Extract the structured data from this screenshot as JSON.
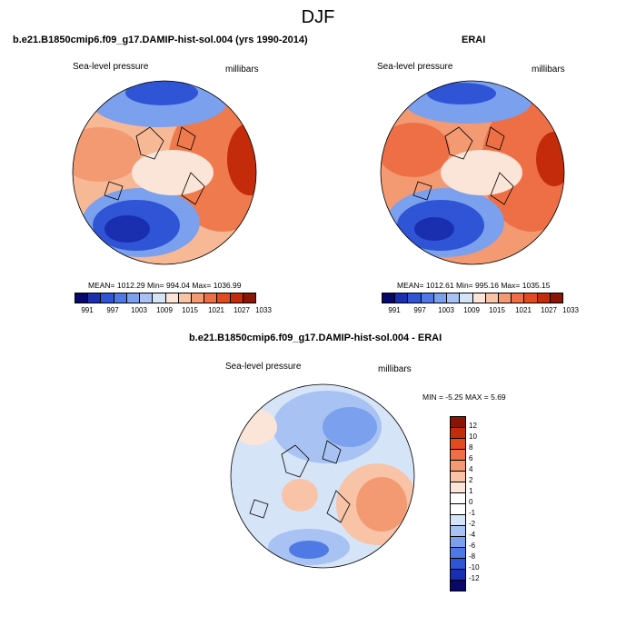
{
  "figure": {
    "title": "DJF",
    "panels": [
      {
        "title": "b.e21.B1850cmip6.f09_g17.DAMIP-hist-sol.004 (yrs 1990-2014)",
        "left_label": "Sea-level pressure",
        "right_label": "millibars",
        "stats": "MEAN= 1012.29  Min= 994.04  Max= 1036.99",
        "colorbar_ticks": [
          "991",
          "997",
          "1003",
          "1009",
          "1015",
          "1021",
          "1027",
          "1033"
        ]
      },
      {
        "title": "ERAI",
        "left_label": "Sea-level pressure",
        "right_label": "millibars",
        "stats": "MEAN= 1012.61  Min= 995.16  Max= 1035.15",
        "colorbar_ticks": [
          "991",
          "997",
          "1003",
          "1009",
          "1015",
          "1021",
          "1027",
          "1033"
        ]
      },
      {
        "title": "b.e21.B1850cmip6.f09_g17.DAMIP-hist-sol.004 - ERAI",
        "left_label": "Sea-level pressure",
        "right_label": "millibars",
        "stats": "MIN =  -5.25 MAX =    5.69",
        "colorbar_ticks": [
          "12",
          "10",
          "8",
          "6",
          "4",
          "2",
          "1",
          "0",
          "-1",
          "-2",
          "-4",
          "-6",
          "-8",
          "-10",
          "-12"
        ]
      }
    ],
    "colors": {
      "diverging": [
        "#08086b",
        "#1a2fb0",
        "#2f55d6",
        "#4f7ae6",
        "#7aa0ee",
        "#a8c3f3",
        "#d6e4f8",
        "#fbe4d8",
        "#f8c3a6",
        "#f39a72",
        "#ee6f45",
        "#e34a1f",
        "#c42b0b",
        "#8a1504"
      ],
      "difference": [
        "#8a1504",
        "#c42b0b",
        "#e34a1f",
        "#ee6f45",
        "#f39a72",
        "#f8c3a6",
        "#fbe4d8",
        "#ffffff",
        "#ffffff",
        "#d6e4f8",
        "#a8c3f3",
        "#7aa0ee",
        "#4f7ae6",
        "#2f55d6",
        "#1a2fb0",
        "#08086b"
      ]
    }
  }
}
